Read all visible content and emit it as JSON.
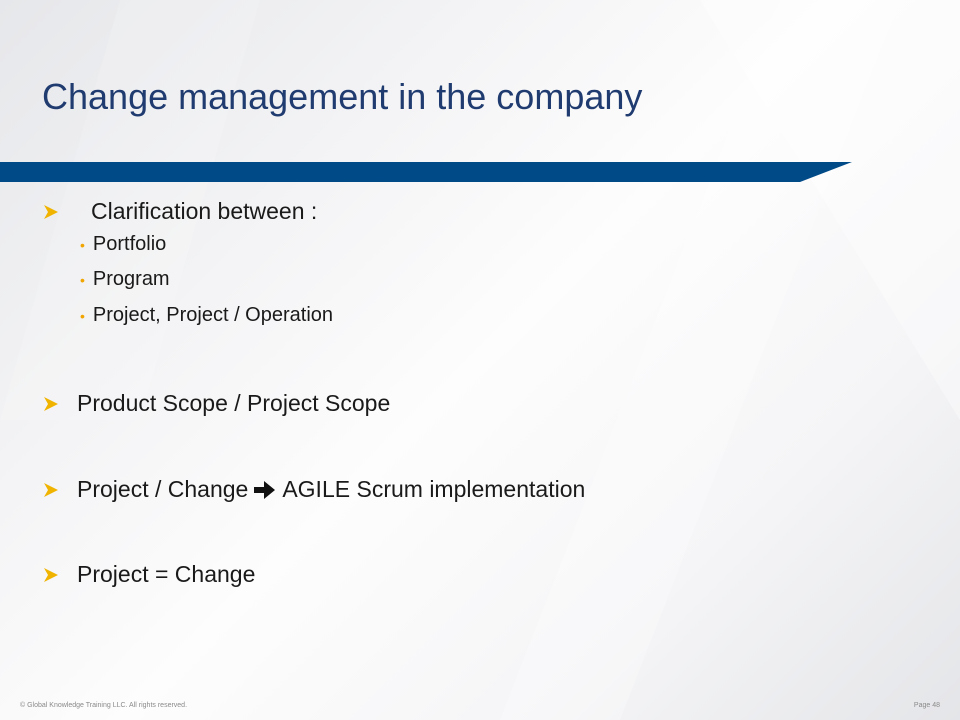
{
  "slide": {
    "title": "Change management in the company",
    "bullets": [
      {
        "text": "Clarification between :"
      },
      {
        "text": "Product Scope / Project Scope"
      },
      {
        "text_before": "Project / Change",
        "text_after": "AGILE Scrum implementation"
      },
      {
        "text": "Project = Change"
      }
    ],
    "sub_bullets": [
      {
        "text": "Portfolio"
      },
      {
        "text": "Program"
      },
      {
        "text": "Project, Project / Operation"
      }
    ],
    "footer": {
      "copyright": "© Global Knowledge  Training LLC. All rights reserved.",
      "page": "Page  48"
    }
  },
  "colors": {
    "title": "#1f3b6f",
    "band": "#004a87",
    "bullet_arrow": "#f0b400",
    "sub_bullet": "#f0a500"
  }
}
